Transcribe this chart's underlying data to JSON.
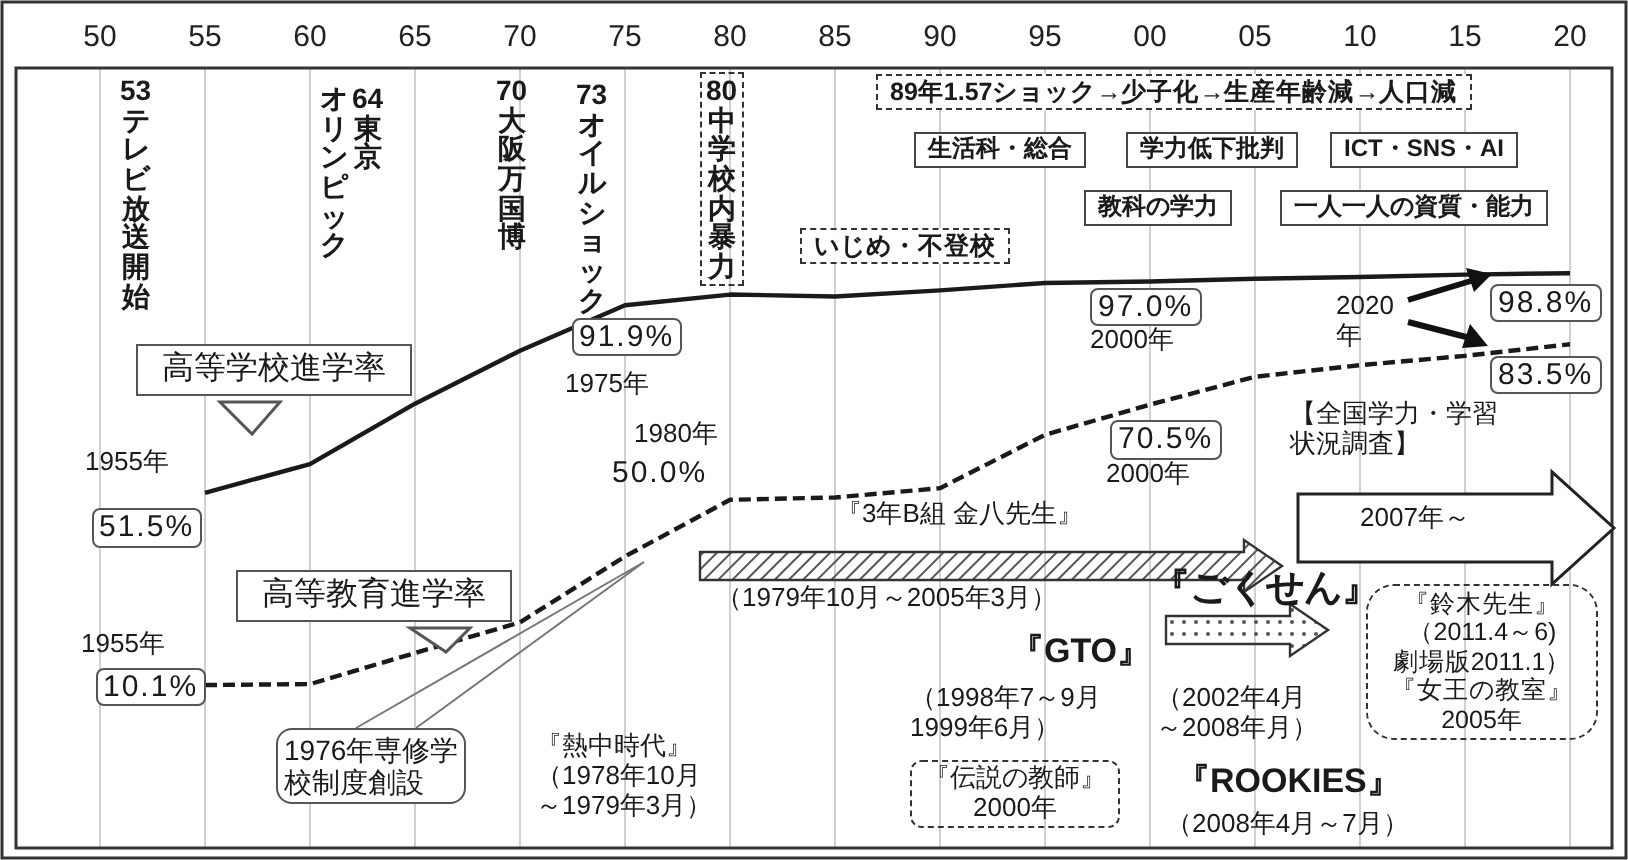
{
  "chart_data": {
    "type": "line",
    "x": [
      1955,
      1960,
      1965,
      1970,
      1975,
      1980,
      1985,
      1990,
      1995,
      2000,
      2005,
      2010,
      2015,
      2020
    ],
    "series": [
      {
        "name": "高等学校進学率",
        "color": "#1a1a1a",
        "line_style": "solid",
        "values": [
          51.5,
          57.7,
          70.7,
          82.1,
          91.9,
          94.2,
          93.8,
          95.1,
          96.7,
          97.0,
          97.6,
          98.0,
          98.5,
          98.8
        ],
        "value_labels": [
          "51.5%",
          null,
          null,
          null,
          "91.9%",
          null,
          null,
          null,
          null,
          "97.0%",
          null,
          null,
          null,
          "98.8%"
        ]
      },
      {
        "name": "高等教育進学率",
        "color": "#1a1a1a",
        "line_style": "dashed",
        "values": [
          10.1,
          10.3,
          17.0,
          23.6,
          37.8,
          50.0,
          50.5,
          52.5,
          64.0,
          70.5,
          76.5,
          79.0,
          81.0,
          83.5
        ],
        "value_labels": [
          "10.1%",
          null,
          null,
          null,
          null,
          "50.0%",
          null,
          null,
          null,
          "70.5%",
          null,
          null,
          null,
          "83.5%"
        ]
      }
    ],
    "xlim": [
      1946,
      2022
    ],
    "xticks": [
      {
        "value": 1950,
        "label": "50"
      },
      {
        "value": 1955,
        "label": "55"
      },
      {
        "value": 1960,
        "label": "60"
      },
      {
        "value": 1965,
        "label": "65"
      },
      {
        "value": 1970,
        "label": "70"
      },
      {
        "value": 1975,
        "label": "75"
      },
      {
        "value": 1980,
        "label": "80"
      },
      {
        "value": 1985,
        "label": "85"
      },
      {
        "value": 1990,
        "label": "90"
      },
      {
        "value": 1995,
        "label": "95"
      },
      {
        "value": 2000,
        "label": "00"
      },
      {
        "value": 2005,
        "label": "05"
      },
      {
        "value": 2010,
        "label": "10"
      },
      {
        "value": 2015,
        "label": "15"
      },
      {
        "value": 2020,
        "label": "20"
      }
    ],
    "ylim": [
      -25,
      143
    ],
    "tick_labels": "x",
    "grid": "x",
    "marker": "none",
    "annotations": [
      "53テレビ放送開始",
      "64東京オリンピック",
      "70大阪万国博",
      "73オイルショック",
      "80中学校内暴力",
      "89年1.57ショック→少子化→生産年齢減→人口減",
      "生活科・総合",
      "学力低下批判",
      "ICT・SNS・AI",
      "教科の学力",
      "一人一人の資質・能力",
      "いじめ・不登校",
      {
        "text": "1975年",
        "x": 1975,
        "y": 91.9
      },
      {
        "text": "1955年",
        "x": 1955,
        "y": 51.5
      },
      {
        "text": "2000年",
        "x": 2000,
        "y": 97.0
      },
      "2020年",
      {
        "text": "1980年",
        "x": 1980,
        "y": 50.0
      },
      {
        "text": "1955年",
        "x": 1955,
        "y": 10.1
      },
      {
        "text": "2000年",
        "x": 2000,
        "y": 70.5
      },
      "【全国学力・学習状況調査】",
      "2007年～",
      "『3年B組 金八先生』",
      "（1979年10月～2005年3月）",
      "『熱中時代』（1978年10月～1979年3月）",
      "1976年専修学校制度創設",
      "『ごくせん』",
      "『GTO』",
      "（1998年7～9月\n1999年6月）",
      "（2002年4月～2008年月）",
      "『伝説の教師』\n2000年",
      "『ROOKIES』",
      "（2008年4月～7月）",
      "『鈴木先生』（2011.4～6)劇場版2011.1）『女王の教室』2005年"
    ]
  }
}
